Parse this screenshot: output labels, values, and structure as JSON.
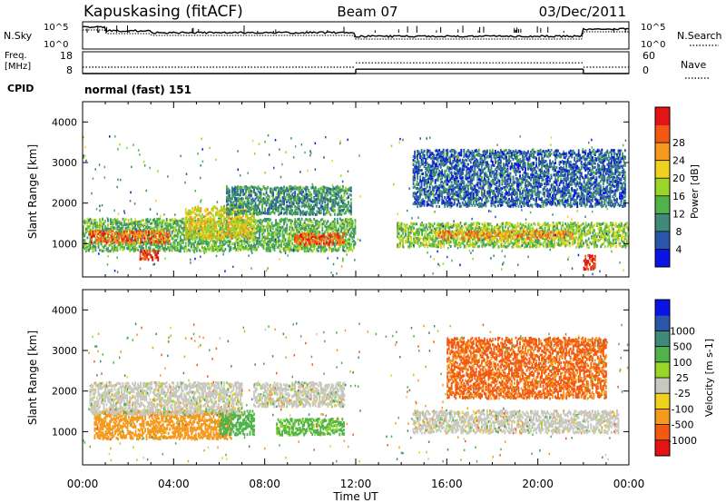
{
  "header": {
    "station": "Kapuskasing (fitACF)",
    "beam": "Beam 07",
    "date": "03/Dec/2011"
  },
  "labels": {
    "nsky": "N.Sky",
    "nsearch": "N.Search",
    "freq_line1": "Freq.",
    "freq_line2": "[MHz]",
    "nave": "Nave",
    "cpid": "CPID",
    "cpid_value": "normal (fast) 151",
    "nsky_top": "10^5",
    "nsky_bottom": "10^0",
    "nsearch_top": "10^5",
    "nsearch_bottom": "10^0",
    "freq_top": "18",
    "freq_bottom": "8",
    "nave_top": "60",
    "nave_bottom": "0"
  },
  "colors": {
    "power": [
      "#0a14e6",
      "#2a55a8",
      "#3f8a7a",
      "#4fb34a",
      "#9ad62a",
      "#f0d21e",
      "#f49a1e",
      "#f25a14",
      "#e41414"
    ],
    "velocity": [
      "#e41414",
      "#f25a14",
      "#f49a1e",
      "#f0d21e",
      "#c8c8c0",
      "#9ad62a",
      "#4fb34a",
      "#3f8a7a",
      "#2a55a8",
      "#0a14e6"
    ],
    "ground_scatter": "#c8c8c0"
  },
  "chart_data": [
    {
      "type": "heatmap",
      "name": "power-panel",
      "ylabel": "Slant Range [km]",
      "xlim": [
        0,
        24
      ],
      "ylim": [
        180,
        4500
      ],
      "yticks": [
        1000,
        2000,
        3000,
        4000
      ],
      "colorbar": {
        "label": "Power [dB]",
        "ticks": [
          "4",
          "8",
          "12",
          "16",
          "20",
          "24",
          "28"
        ],
        "range": [
          0,
          30
        ]
      },
      "echo_regions": [
        {
          "t0": 0.0,
          "t1": 12.0,
          "r0": 800,
          "r1": 1600,
          "level": 12
        },
        {
          "t0": 0.3,
          "t1": 3.8,
          "r0": 1000,
          "r1": 1300,
          "level": 24
        },
        {
          "t0": 2.5,
          "t1": 3.3,
          "r0": 580,
          "r1": 820,
          "level": 28
        },
        {
          "t0": 4.5,
          "t1": 7.5,
          "r0": 1100,
          "r1": 1900,
          "level": 18
        },
        {
          "t0": 6.3,
          "t1": 11.8,
          "r0": 1700,
          "r1": 2400,
          "level": 9
        },
        {
          "t0": 9.3,
          "t1": 11.5,
          "r0": 950,
          "r1": 1250,
          "level": 25
        },
        {
          "t0": 13.8,
          "t1": 24.0,
          "r0": 900,
          "r1": 1500,
          "level": 14
        },
        {
          "t0": 15.5,
          "t1": 21.5,
          "r0": 1100,
          "r1": 1300,
          "level": 22
        },
        {
          "t0": 22.0,
          "t1": 22.5,
          "r0": 350,
          "r1": 700,
          "level": 28
        },
        {
          "t0": 14.5,
          "t1": 23.8,
          "r0": 1900,
          "r1": 3300,
          "level": 6
        }
      ]
    },
    {
      "type": "heatmap",
      "name": "velocity-panel",
      "ylabel": "Slant Range [km]",
      "xlabel": "Time UT",
      "xlim": [
        0,
        24
      ],
      "ylim": [
        180,
        4500
      ],
      "yticks": [
        1000,
        2000,
        3000,
        4000
      ],
      "xticks": [
        "00:00",
        "04:00",
        "08:00",
        "12:00",
        "16:00",
        "20:00",
        "00:00"
      ],
      "colorbar": {
        "label": "Velocity [m s-1]",
        "ticks": [
          "-1000",
          "-500",
          "-100",
          "-25",
          "25",
          "100",
          "500",
          "1000"
        ],
        "range": [
          -1200,
          1200
        ]
      },
      "echo_regions": [
        {
          "t0": 0.5,
          "t1": 6.5,
          "r0": 800,
          "r1": 1500,
          "vel": -300
        },
        {
          "t0": 6.0,
          "t1": 7.5,
          "r0": 900,
          "r1": 1500,
          "vel": 300
        },
        {
          "t0": 8.5,
          "t1": 11.5,
          "r0": 900,
          "r1": 1300,
          "vel": 200
        },
        {
          "t0": 7.5,
          "t1": 11.5,
          "r0": 1600,
          "r1": 2200,
          "vel": 0
        },
        {
          "t0": 0.3,
          "t1": 7.0,
          "r0": 1400,
          "r1": 2200,
          "vel": 0
        },
        {
          "t0": 14.5,
          "t1": 23.5,
          "r0": 950,
          "r1": 1500,
          "vel": 0
        },
        {
          "t0": 16.0,
          "t1": 23.0,
          "r0": 1800,
          "r1": 3300,
          "vel": -600
        }
      ]
    }
  ],
  "status_data": {
    "xlim": [
      0,
      24
    ],
    "freq_mhz": [
      {
        "t0": 0,
        "t1": 12,
        "value": 10.5
      },
      {
        "t0": 12,
        "t1": 22,
        "value": 12.5
      },
      {
        "t0": 22,
        "t1": 24,
        "value": 10.5
      }
    ]
  }
}
